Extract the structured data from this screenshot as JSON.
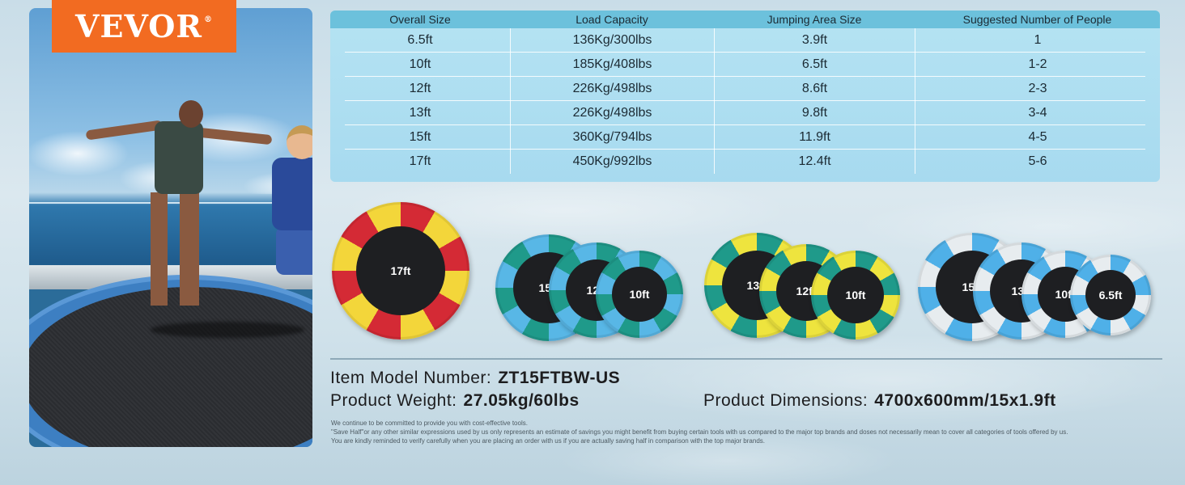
{
  "brand": {
    "logo_text": "VEVOR",
    "registered_mark": "®",
    "logo_color": "#f26b21"
  },
  "table": {
    "headers": [
      "Overall Size",
      "Load Capacity",
      "Jumping Area Size",
      "Suggested Number of People"
    ],
    "rows": [
      [
        "6.5ft",
        "136Kg/300lbs",
        "3.9ft",
        "1"
      ],
      [
        "10ft",
        "185Kg/408lbs",
        "6.5ft",
        "1-2"
      ],
      [
        "12ft",
        "226Kg/498lbs",
        "8.6ft",
        "2-3"
      ],
      [
        "13ft",
        "226Kg/498lbs",
        "9.8ft",
        "3-4"
      ],
      [
        "15ft",
        "360Kg/794lbs",
        "11.9ft",
        "4-5"
      ],
      [
        "17ft",
        "450Kg/992lbs",
        "12.4ft",
        "5-6"
      ]
    ]
  },
  "trampoline_groups": [
    {
      "colors": [
        "#d42a35",
        "#f3d63a"
      ],
      "sizes": [
        "17ft"
      ]
    },
    {
      "colors": [
        "#1f9a8a",
        "#58b7e6"
      ],
      "sizes": [
        "15ft",
        "12ft",
        "10ft"
      ]
    },
    {
      "colors": [
        "#1f9a8a",
        "#eee43e"
      ],
      "sizes": [
        "13ft",
        "12ft",
        "10ft"
      ]
    },
    {
      "colors": [
        "#4fb0e8",
        "#e7ecef"
      ],
      "sizes": [
        "15ft",
        "13ft",
        "10ft",
        "6.5ft"
      ]
    }
  ],
  "info": {
    "model_label": "Item Model Number:",
    "model_value": "ZT15FTBW-US",
    "weight_label": "Product Weight:",
    "weight_value": "27.05kg/60lbs",
    "dimensions_label": "Product Dimensions:",
    "dimensions_value": "4700x600mm/15x1.9ft"
  },
  "disclaimer": [
    "We continue to be committed to provide you with cost-effective tools.",
    "\"Save Half\"or any other similar expressions used by us only represents an estimate of savings you might benefit from buying certain tools with us compared to the major top brands and doses not necessarily mean to cover all categories of tools offered by us.",
    "You are kindly reminded to verify carefully when you are placing an order with us if you are actually saving half in comparison with the top major brands."
  ]
}
